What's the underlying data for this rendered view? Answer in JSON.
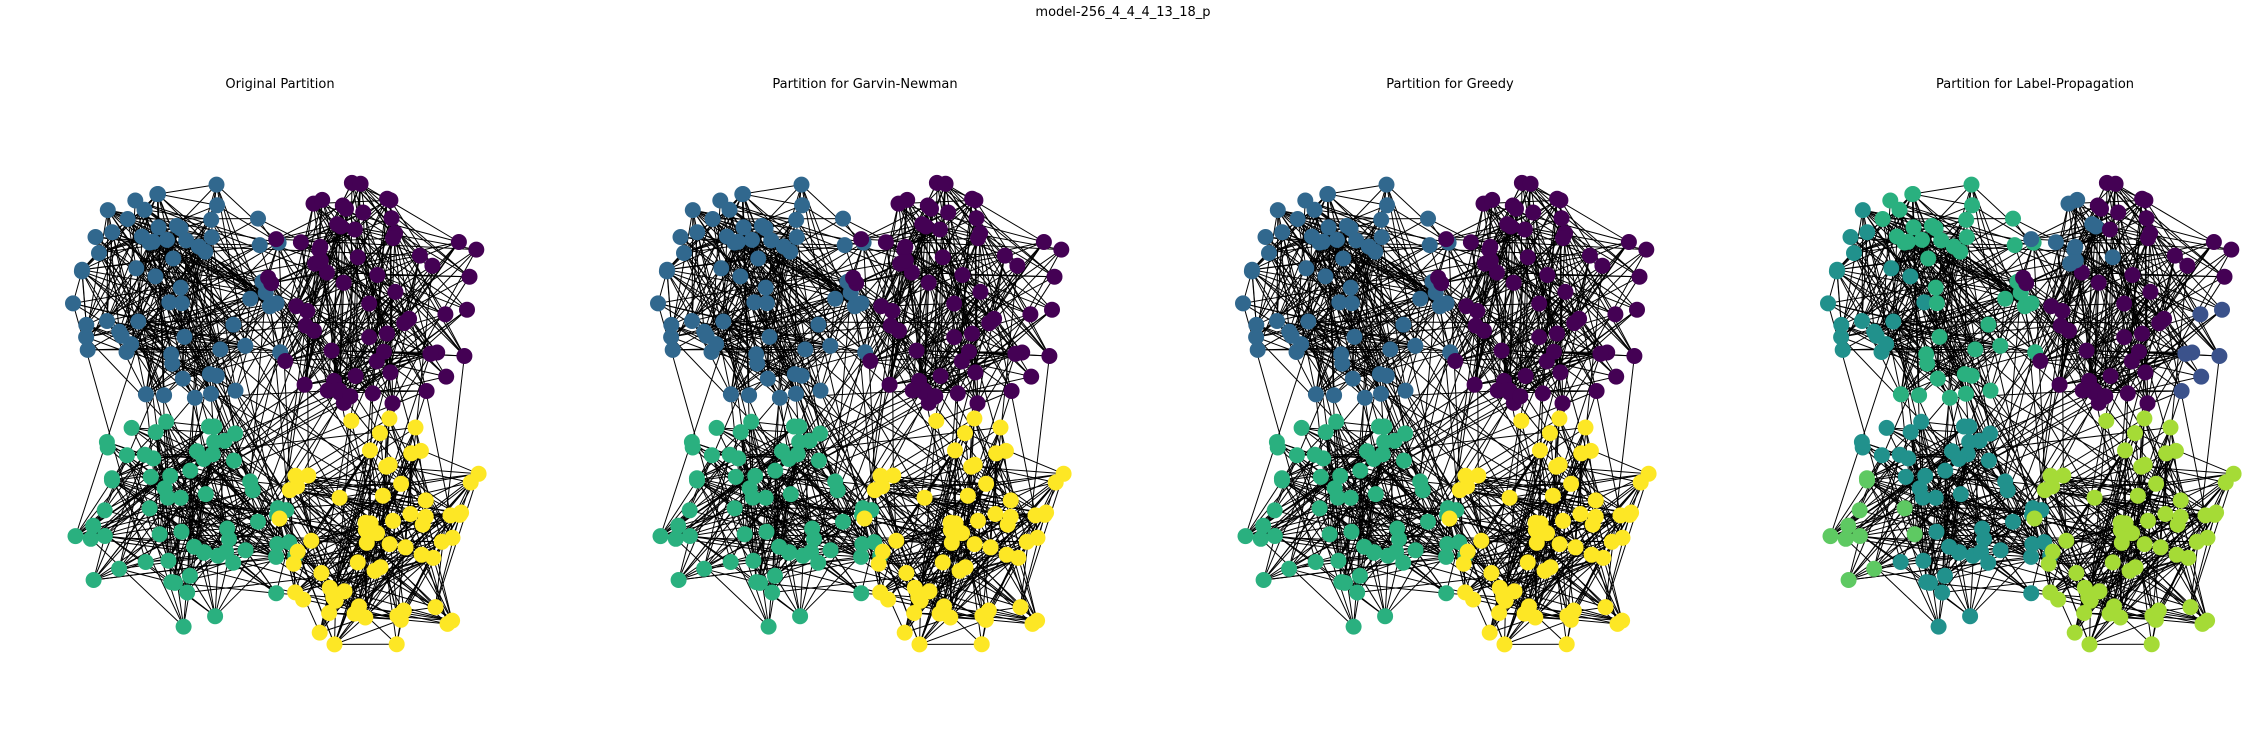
{
  "figure": {
    "suptitle": "model-256_4_4_4_13_18_p"
  },
  "colors": {
    "purple": "#440154",
    "indigo": "#3b528b",
    "blue": "#31688e",
    "teal": "#21918c",
    "green": "#2ab07f",
    "lightgreen": "#5ec962",
    "lime": "#a5db36",
    "yellow": "#fde725",
    "edge": "#000000"
  },
  "panels": [
    {
      "title": "Original Partition",
      "scheme": "original"
    },
    {
      "title": "Partition for Garvin-Newman",
      "scheme": "original"
    },
    {
      "title": "Partition for Greedy",
      "scheme": "original"
    },
    {
      "title": "Partition for Label-Propagation",
      "scheme": "label"
    }
  ],
  "chart_data": {
    "type": "network",
    "nodes": 256,
    "communities": 4,
    "nodes_per_community": 64,
    "partitions": [
      {
        "name": "Original Partition",
        "groups": 4
      },
      {
        "name": "Partition for Garvin-Newman",
        "groups": 4
      },
      {
        "name": "Partition for Greedy",
        "groups": 4
      },
      {
        "name": "Partition for Label-Propagation",
        "groups": 8
      }
    ]
  }
}
